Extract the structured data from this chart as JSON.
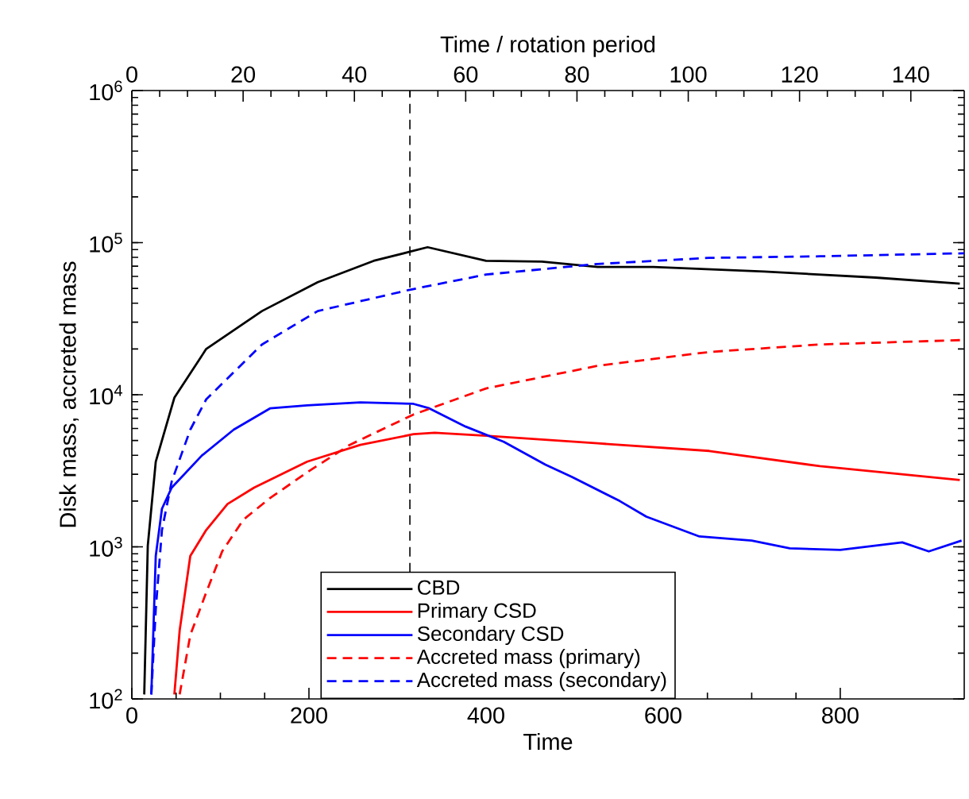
{
  "chart_data": {
    "type": "line",
    "xlabel": "Time",
    "ylabel": "Disk mass, accreted mass",
    "x2label": "Time / rotation period",
    "xlim": [
      0,
      940
    ],
    "xticks": [
      0,
      200,
      400,
      600,
      800
    ],
    "x2lim": [
      0,
      149.6
    ],
    "x2ticks": [
      0,
      20,
      40,
      60,
      80,
      100,
      120,
      140
    ],
    "ylim": [
      100,
      1000000
    ],
    "log": "y",
    "yticks": [
      {
        "value": 100,
        "label": "10$^{2}$"
      },
      {
        "value": 1000,
        "label": "10$^{3}$"
      },
      {
        "value": 10000,
        "label": "10$^{4}$"
      },
      {
        "value": 100000,
        "label": "10$^{5}$"
      },
      {
        "value": 1000000,
        "label": "10$^{6}$"
      }
    ],
    "legend": "bottom",
    "grid": false,
    "marker": "none",
    "ref_lines": [
      {
        "axis": "x",
        "value": 314,
        "color": "#000000",
        "line_style": "dashed"
      }
    ],
    "series": [
      {
        "name": "CBD",
        "color": "#000000",
        "line_style": "solid",
        "x": [
          14,
          18,
          27,
          48,
          84,
          147,
          210,
          273,
          314,
          334,
          400,
          463,
          526,
          589,
          714,
          840,
          935
        ],
        "values": [
          107,
          1020,
          3630,
          9550,
          20000,
          35500,
          55000,
          75900,
          87100,
          93300,
          75900,
          75000,
          69200,
          69200,
          64600,
          58900,
          53700
        ]
      },
      {
        "name": "Primary CSD",
        "color": "#ff0000",
        "line_style": "solid",
        "x": [
          48,
          54,
          66,
          84,
          108,
          138,
          198,
          258,
          318,
          342,
          400,
          526,
          652,
          777,
          935
        ],
        "values": [
          107,
          282,
          871,
          1290,
          1910,
          2450,
          3630,
          4680,
          5500,
          5620,
          5370,
          4790,
          4270,
          3390,
          2750
        ]
      },
      {
        "name": "Secondary CSD",
        "color": "#0000ff",
        "line_style": "solid",
        "x": [
          22,
          27,
          34,
          45,
          79,
          115,
          156,
          198,
          258,
          318,
          336,
          377,
          420,
          467,
          497,
          551,
          581,
          641,
          700,
          743,
          800,
          870,
          900,
          937
        ],
        "values": [
          107,
          871,
          1780,
          2450,
          3980,
          5890,
          8130,
          8510,
          8910,
          8710,
          8130,
          6170,
          4900,
          3470,
          2880,
          2000,
          1580,
          1170,
          1100,
          977,
          955,
          1070,
          933,
          1100
        ]
      },
      {
        "name": "Accreted mass (primary)",
        "color": "#ff0000",
        "line_style": "dashed",
        "x": [
          54,
          66,
          84,
          102,
          126,
          156,
          198,
          246,
          318,
          400,
          526,
          652,
          777,
          940
        ],
        "values": [
          107,
          263,
          501,
          933,
          1510,
          2090,
          3090,
          4680,
          7410,
          11000,
          15500,
          19100,
          21400,
          22900
        ]
      },
      {
        "name": "Accreted mass (secondary)",
        "color": "#0000ff",
        "line_style": "dashed",
        "x": [
          22,
          27,
          34,
          45,
          66,
          84,
          147,
          210,
          314,
          400,
          526,
          652,
          777,
          940
        ],
        "values": [
          107,
          389,
          1290,
          2690,
          5890,
          9330,
          21400,
          35500,
          49000,
          61700,
          72400,
          79400,
          81300,
          85100
        ]
      }
    ]
  }
}
